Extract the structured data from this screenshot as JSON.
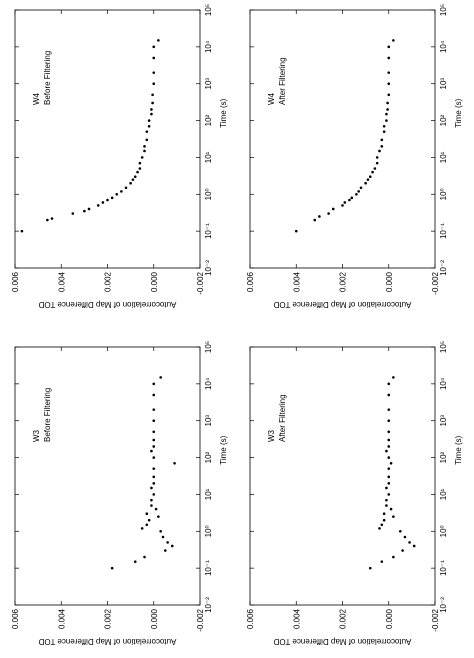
{
  "chart_data": [
    {
      "type": "scatter",
      "annotations": [
        "W4",
        "Before Filtering"
      ],
      "xlabel": "Time (s)",
      "ylabel": "Autocorrelation of Map Difference TOD",
      "log_x": true,
      "color": "#000000",
      "xlim": [
        0.01,
        100000
      ],
      "ylim": [
        -0.002,
        0.006
      ],
      "xticks": [
        {
          "value": 0.01,
          "label": "10⁻²"
        },
        {
          "value": 0.1,
          "label": "10⁻¹"
        },
        {
          "value": 1,
          "label": "10⁰"
        },
        {
          "value": 10,
          "label": "10¹"
        },
        {
          "value": 100,
          "label": "10²"
        },
        {
          "value": 1000,
          "label": "10³"
        },
        {
          "value": 10000,
          "label": "10⁴"
        },
        {
          "value": 100000,
          "label": "10⁵"
        }
      ],
      "yticks": [
        0.006,
        0.004,
        0.002,
        {
          "value": 0,
          "label": "0.000"
        },
        -0.002
      ],
      "x": [
        0.1,
        0.2,
        0.22,
        0.3,
        0.35,
        0.4,
        0.5,
        0.6,
        0.7,
        0.8,
        1,
        1.2,
        1.5,
        2,
        2.5,
        3,
        4,
        5,
        7,
        10,
        15,
        20,
        30,
        50,
        70,
        100,
        150,
        200,
        300,
        500,
        1000,
        2000,
        5000,
        10000,
        15000
      ],
      "values": [
        0.0057,
        0.0046,
        0.0044,
        0.0035,
        0.003,
        0.0028,
        0.0024,
        0.0022,
        0.002,
        0.0018,
        0.0016,
        0.0014,
        0.0012,
        0.001,
        0.0009,
        0.0008,
        0.0007,
        0.0006,
        0.0006,
        0.0005,
        0.0004,
        0.0004,
        0.0003,
        0.0003,
        0.0002,
        0.0002,
        0.0001,
        0.0001,
        5e-05,
        5e-05,
        0,
        0,
        0,
        0,
        -0.0002
      ]
    },
    {
      "type": "scatter",
      "annotations": [
        "W4",
        "After Filtering"
      ],
      "xlabel": "Time (s)",
      "ylabel": "Autocorrelation of Map Difference TOD",
      "log_x": true,
      "color": "#000000",
      "xlim": [
        0.01,
        100000
      ],
      "ylim": [
        -0.002,
        0.006
      ],
      "xticks": [
        {
          "value": 0.01,
          "label": "10⁻²"
        },
        {
          "value": 0.1,
          "label": "10⁻¹"
        },
        {
          "value": 1,
          "label": "10⁰"
        },
        {
          "value": 10,
          "label": "10¹"
        },
        {
          "value": 100,
          "label": "10²"
        },
        {
          "value": 1000,
          "label": "10³"
        },
        {
          "value": 10000,
          "label": "10⁴"
        },
        {
          "value": 100000,
          "label": "10⁵"
        }
      ],
      "yticks": [
        0.006,
        0.004,
        0.002,
        {
          "value": 0,
          "label": "0.000"
        },
        -0.002
      ],
      "x": [
        0.1,
        0.2,
        0.25,
        0.3,
        0.4,
        0.5,
        0.6,
        0.7,
        0.8,
        1,
        1.2,
        1.5,
        2,
        2.5,
        3,
        4,
        5,
        7,
        10,
        15,
        20,
        30,
        50,
        70,
        100,
        150,
        200,
        300,
        500,
        1000,
        2000,
        5000,
        10000,
        15000
      ],
      "values": [
        0.004,
        0.0032,
        0.003,
        0.0026,
        0.0024,
        0.002,
        0.0019,
        0.0017,
        0.0016,
        0.0014,
        0.0013,
        0.0012,
        0.001,
        0.0009,
        0.0008,
        0.0007,
        0.0006,
        0.0005,
        0.0005,
        0.0004,
        0.0003,
        0.0003,
        0.0002,
        0.0002,
        0.0001,
        0.0001,
        5e-05,
        5e-05,
        0,
        0,
        0,
        0,
        0,
        -0.0002
      ]
    },
    {
      "type": "scatter",
      "annotations": [
        "W3",
        "Before Filtering"
      ],
      "xlabel": "Time (s)",
      "ylabel": "Autocorrelation of Map Difference TOD",
      "log_x": true,
      "color": "#000000",
      "xlim": [
        0.01,
        100000
      ],
      "ylim": [
        -0.002,
        0.006
      ],
      "xticks": [
        {
          "value": 0.01,
          "label": "10⁻²"
        },
        {
          "value": 0.1,
          "label": "10⁻¹"
        },
        {
          "value": 1,
          "label": "10⁰"
        },
        {
          "value": 10,
          "label": "10¹"
        },
        {
          "value": 100,
          "label": "10²"
        },
        {
          "value": 1000,
          "label": "10³"
        },
        {
          "value": 10000,
          "label": "10⁴"
        },
        {
          "value": 100000,
          "label": "10⁵"
        }
      ],
      "yticks": [
        0.006,
        0.004,
        0.002,
        {
          "value": 0,
          "label": "0.000"
        },
        -0.002
      ],
      "x": [
        0.1,
        0.15,
        0.2,
        0.3,
        0.4,
        0.5,
        0.7,
        1,
        1.2,
        1.5,
        2,
        2.5,
        3,
        4,
        5,
        7,
        10,
        15,
        20,
        30,
        50,
        70,
        100,
        150,
        200,
        300,
        500,
        1000,
        2000,
        5000,
        10000,
        15000
      ],
      "values": [
        0.0018,
        0.0008,
        0.0004,
        -0.0005,
        -0.0008,
        -0.0006,
        -0.0004,
        -0.0003,
        0.0005,
        0.0003,
        0.0002,
        -0.0002,
        0.0003,
        -0.0001,
        0.0001,
        0.0001,
        0,
        0.0001,
        0,
        0,
        0,
        -0.0009,
        0,
        0.0001,
        0,
        0,
        0,
        0,
        0,
        0,
        0,
        -0.0003
      ]
    },
    {
      "type": "scatter",
      "annotations": [
        "W3",
        "After Filtering"
      ],
      "xlabel": "Time (s)",
      "ylabel": "Autocorrelation of Map Difference TOD",
      "log_x": true,
      "color": "#000000",
      "xlim": [
        0.01,
        100000
      ],
      "ylim": [
        -0.002,
        0.006
      ],
      "xticks": [
        {
          "value": 0.01,
          "label": "10⁻²"
        },
        {
          "value": 0.1,
          "label": "10⁻¹"
        },
        {
          "value": 1,
          "label": "10⁰"
        },
        {
          "value": 10,
          "label": "10¹"
        },
        {
          "value": 100,
          "label": "10²"
        },
        {
          "value": 1000,
          "label": "10³"
        },
        {
          "value": 10000,
          "label": "10⁴"
        },
        {
          "value": 100000,
          "label": "10⁵"
        }
      ],
      "yticks": [
        0.006,
        0.004,
        0.002,
        {
          "value": 0,
          "label": "0.000"
        },
        -0.002
      ],
      "x": [
        0.1,
        0.15,
        0.2,
        0.3,
        0.4,
        0.5,
        0.7,
        1,
        1.2,
        1.5,
        2,
        2.5,
        3,
        4,
        5,
        7,
        10,
        15,
        20,
        30,
        50,
        70,
        100,
        150,
        200,
        300,
        500,
        1000,
        2000,
        5000,
        10000,
        15000
      ],
      "values": [
        0.0008,
        0.0003,
        -0.0002,
        -0.0006,
        -0.0011,
        -0.0009,
        -0.0007,
        -0.0005,
        0.0004,
        0.0003,
        0.0002,
        -0.0002,
        0.0002,
        -0.0001,
        0.0001,
        0.0001,
        0,
        0.0001,
        0,
        0,
        0,
        -0.0001,
        0,
        0.0001,
        0,
        0,
        0,
        0,
        0,
        0,
        0,
        -0.0002
      ]
    }
  ]
}
